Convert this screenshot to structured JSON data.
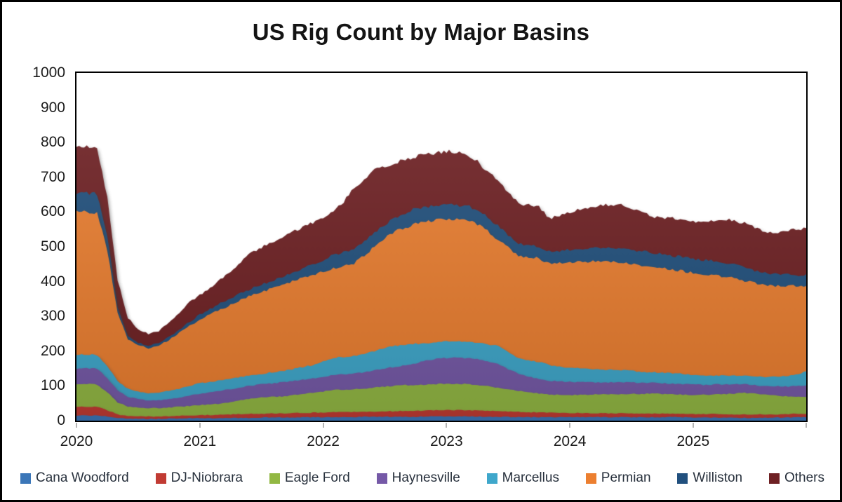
{
  "chart_data": {
    "type": "area",
    "stacked": true,
    "title": "US Rig Count by Major Basins",
    "x": {
      "start": "2020-01",
      "end": "2025-12",
      "interval": "month",
      "points": 72
    },
    "x_tick_labels": [
      "2020",
      "2021",
      "2022",
      "2023",
      "2024",
      "2025"
    ],
    "ylim": [
      0,
      1000
    ],
    "y_ticks": [
      0,
      100,
      200,
      300,
      400,
      500,
      600,
      700,
      800,
      900,
      1000
    ],
    "grid": false,
    "legend_position": "bottom",
    "colors": {
      "text": "#1c1c1c",
      "legend_text": "#27303c",
      "plot_border": "#000000",
      "tick_mark": "#b4b4b4",
      "background": "#ffffff"
    },
    "series": [
      {
        "name": "Cana Woodford",
        "color": "#3B76B8",
        "values": [
          15,
          15,
          15,
          12,
          8,
          6,
          5,
          5,
          5,
          6,
          6,
          7,
          7,
          7,
          8,
          8,
          8,
          8,
          9,
          9,
          9,
          9,
          10,
          10,
          10,
          10,
          10,
          10,
          11,
          11,
          11,
          11,
          11,
          11,
          12,
          12,
          12,
          12,
          12,
          12,
          11,
          11,
          11,
          10,
          10,
          10,
          10,
          10,
          10,
          10,
          10,
          10,
          10,
          10,
          10,
          10,
          10,
          10,
          10,
          10,
          9,
          9,
          9,
          9,
          9,
          8,
          8,
          8,
          9,
          9,
          10,
          10
        ]
      },
      {
        "name": "DJ-Niobrara",
        "color": "#C13B33",
        "values": [
          25,
          25,
          25,
          18,
          10,
          7,
          7,
          7,
          7,
          7,
          8,
          8,
          9,
          9,
          9,
          10,
          11,
          12,
          11,
          12,
          12,
          13,
          12,
          13,
          13,
          14,
          15,
          15,
          15,
          15,
          16,
          16,
          17,
          17,
          17,
          18,
          18,
          18,
          18,
          17,
          17,
          16,
          15,
          15,
          14,
          14,
          13,
          13,
          12,
          12,
          11,
          11,
          11,
          11,
          11,
          10,
          10,
          10,
          10,
          10,
          10,
          10,
          10,
          10,
          9,
          10,
          10,
          10,
          9,
          10,
          10,
          10
        ]
      },
      {
        "name": "Eagle Ford",
        "color": "#92B843",
        "values": [
          65,
          65,
          64,
          52,
          34,
          28,
          26,
          24,
          24,
          25,
          26,
          27,
          29,
          30,
          32,
          36,
          40,
          44,
          46,
          47,
          49,
          51,
          54,
          57,
          61,
          64,
          64,
          65,
          66,
          69,
          71,
          73,
          74,
          75,
          75,
          75,
          76,
          76,
          75,
          74,
          71,
          68,
          64,
          60,
          57,
          54,
          52,
          51,
          52,
          52,
          54,
          54,
          55,
          55,
          56,
          57,
          58,
          57,
          56,
          55,
          55,
          55,
          56,
          57,
          60,
          62,
          60,
          57,
          54,
          51,
          49,
          48
        ]
      },
      {
        "name": "Haynesville",
        "color": "#7559A7",
        "values": [
          45,
          45,
          45,
          40,
          36,
          28,
          24,
          22,
          23,
          24,
          26,
          30,
          33,
          35,
          37,
          37,
          37,
          37,
          38,
          39,
          40,
          41,
          42,
          42,
          42,
          43,
          44,
          45,
          48,
          50,
          52,
          55,
          58,
          62,
          68,
          73,
          74,
          75,
          75,
          73,
          70,
          67,
          58,
          50,
          45,
          41,
          40,
          39,
          38,
          37,
          35,
          35,
          34,
          34,
          33,
          32,
          31,
          31,
          30,
          30,
          30,
          29,
          29,
          28,
          27,
          25,
          24,
          25,
          27,
          28,
          30,
          32
        ]
      },
      {
        "name": "Marcellus",
        "color": "#3FA7CB",
        "values": [
          40,
          40,
          40,
          36,
          25,
          23,
          21,
          21,
          22,
          24,
          26,
          28,
          30,
          30,
          30,
          30,
          30,
          30,
          31,
          32,
          33,
          34,
          36,
          38,
          44,
          50,
          50,
          51,
          53,
          55,
          58,
          60,
          58,
          56,
          51,
          47,
          47,
          47,
          48,
          49,
          51,
          53,
          48,
          45,
          47,
          50,
          45,
          42,
          40,
          39,
          38,
          37,
          36,
          35,
          33,
          32,
          30,
          30,
          30,
          30,
          28,
          27,
          26,
          26,
          25,
          24,
          25,
          25,
          27,
          30,
          34,
          42
        ]
      },
      {
        "name": "Permian",
        "color": "#EC7F30",
        "values": [
          410,
          410,
          409,
          332,
          197,
          143,
          134,
          130,
          135,
          146,
          160,
          172,
          184,
          194,
          204,
          212,
          221,
          229,
          235,
          241,
          247,
          252,
          256,
          260,
          258,
          256,
          261,
          266,
          282,
          300,
          317,
          330,
          337,
          344,
          348,
          352,
          351,
          350,
          348,
          340,
          325,
          305,
          302,
          295,
          297,
          298,
          292,
          297,
          303,
          306,
          310,
          310,
          310,
          310,
          308,
          306,
          304,
          301,
          298,
          295,
          293,
          290,
          288,
          285,
          279,
          273,
          269,
          265,
          262,
          260,
          254,
          246
        ]
      },
      {
        "name": "Williston",
        "color": "#21507E",
        "values": [
          55,
          55,
          54,
          40,
          15,
          8,
          7,
          6,
          7,
          8,
          10,
          12,
          14,
          15,
          17,
          18,
          19,
          20,
          21,
          22,
          24,
          26,
          28,
          30,
          34,
          40,
          40,
          40,
          40,
          40,
          38,
          40,
          42,
          45,
          43,
          41,
          42,
          42,
          42,
          41,
          40,
          40,
          37,
          35,
          35,
          34,
          35,
          36,
          37,
          38,
          39,
          39,
          40,
          40,
          40,
          40,
          40,
          40,
          40,
          40,
          41,
          42,
          41,
          40,
          39,
          38,
          36,
          35,
          33,
          32,
          31,
          30
        ]
      },
      {
        "name": "Others",
        "color": "#6E2023",
        "values": [
          135,
          133,
          133,
          110,
          80,
          52,
          40,
          33,
          34,
          43,
          50,
          56,
          56,
          62,
          68,
          79,
          91,
          103,
          107,
          111,
          114,
          116,
          118,
          120,
          123,
          127,
          146,
          176,
          180,
          180,
          169,
          157,
          155,
          150,
          152,
          152,
          155,
          153,
          150,
          139,
          130,
          130,
          120,
          115,
          115,
          114,
          95,
          102,
          108,
          114,
          118,
          122,
          125,
          125,
          119,
          111,
          104,
          105,
          108,
          110,
          108,
          108,
          117,
          125,
          126,
          127,
          123,
          118,
          119,
          128,
          133,
          134
        ]
      }
    ]
  }
}
